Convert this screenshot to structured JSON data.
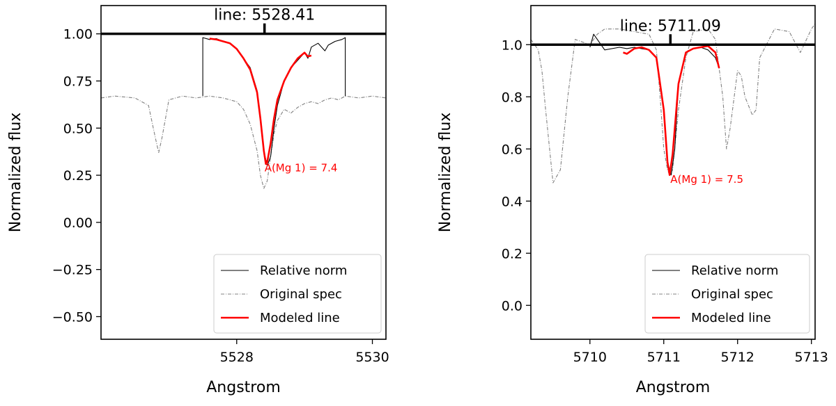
{
  "chart_data": [
    {
      "type": "line",
      "title": "line: 5528.41",
      "xlabel": "Angstrom",
      "ylabel": "Normalized flux",
      "xlim": [
        5526.0,
        5530.2
      ],
      "ylim": [
        -0.62,
        1.15
      ],
      "xticks": [
        5528,
        5530
      ],
      "yticks": [
        -0.5,
        -0.25,
        0.0,
        0.25,
        0.5,
        0.75,
        1.0
      ],
      "ytick_labels": [
        "−0.50",
        "−0.25",
        "0.00",
        "0.25",
        "0.50",
        "0.75",
        "1.00"
      ],
      "reference_line": {
        "y": 1.0,
        "marker_x": 5528.41
      },
      "annotation": {
        "text": "A(Mg 1) = 7.4",
        "x": 5528.41,
        "y": 0.27
      },
      "legend": {
        "position": "bottom-right",
        "entries": [
          "Relative norm",
          "Original spec",
          "Modeled line"
        ]
      },
      "series": [
        {
          "name": "Relative norm",
          "color": "#000000",
          "style": "solid",
          "x": [
            5527.5,
            5527.5,
            5527.6,
            5527.7,
            5527.8,
            5527.9,
            5528.0,
            5528.1,
            5528.2,
            5528.3,
            5528.35,
            5528.4,
            5528.45,
            5528.5,
            5528.55,
            5528.6,
            5528.7,
            5528.8,
            5528.9,
            5529.0,
            5529.05,
            5529.1,
            5529.2,
            5529.3,
            5529.35,
            5529.45,
            5529.55,
            5529.6,
            5529.6
          ],
          "y": [
            0.67,
            0.98,
            0.97,
            0.975,
            0.96,
            0.95,
            0.92,
            0.87,
            0.82,
            0.7,
            0.55,
            0.38,
            0.3,
            0.35,
            0.5,
            0.62,
            0.75,
            0.82,
            0.86,
            0.9,
            0.87,
            0.93,
            0.95,
            0.91,
            0.94,
            0.96,
            0.97,
            0.98,
            0.67
          ]
        },
        {
          "name": "Original spec",
          "color": "#808080",
          "style": "dashdot",
          "x": [
            5526.0,
            5526.2,
            5526.5,
            5526.7,
            5526.8,
            5526.85,
            5526.9,
            5527.0,
            5527.2,
            5527.4,
            5527.6,
            5527.8,
            5528.0,
            5528.1,
            5528.2,
            5528.3,
            5528.35,
            5528.4,
            5528.45,
            5528.5,
            5528.55,
            5528.6,
            5528.7,
            5528.8,
            5528.9,
            5529.0,
            5529.1,
            5529.2,
            5529.3,
            5529.4,
            5529.5,
            5529.6,
            5529.8,
            5530.0,
            5530.2
          ],
          "y": [
            0.66,
            0.67,
            0.66,
            0.62,
            0.45,
            0.37,
            0.45,
            0.65,
            0.67,
            0.66,
            0.67,
            0.66,
            0.64,
            0.6,
            0.52,
            0.38,
            0.25,
            0.18,
            0.22,
            0.35,
            0.47,
            0.54,
            0.6,
            0.58,
            0.61,
            0.63,
            0.64,
            0.63,
            0.65,
            0.66,
            0.65,
            0.67,
            0.66,
            0.67,
            0.66
          ]
        },
        {
          "name": "Modeled line",
          "color": "#ff0000",
          "style": "solid",
          "x": [
            5527.6,
            5527.7,
            5527.8,
            5527.9,
            5528.0,
            5528.1,
            5528.2,
            5528.3,
            5528.35,
            5528.4,
            5528.43,
            5528.45,
            5528.5,
            5528.55,
            5528.6,
            5528.7,
            5528.8,
            5528.9,
            5529.0,
            5529.05,
            5529.1
          ],
          "y": [
            0.975,
            0.97,
            0.96,
            0.95,
            0.92,
            0.87,
            0.81,
            0.69,
            0.55,
            0.38,
            0.31,
            0.32,
            0.42,
            0.55,
            0.65,
            0.75,
            0.82,
            0.87,
            0.9,
            0.88,
            0.885
          ]
        }
      ]
    },
    {
      "type": "line",
      "title": "line: 5711.09",
      "xlabel": "Angstrom",
      "ylabel": "Normalized flux",
      "xlim": [
        5709.2,
        5713.05
      ],
      "ylim": [
        -0.13,
        1.15
      ],
      "xticks": [
        5710,
        5711,
        5712,
        5713
      ],
      "yticks": [
        0.0,
        0.2,
        0.4,
        0.6,
        0.8,
        1.0
      ],
      "ytick_labels": [
        "0.0",
        "0.2",
        "0.4",
        "0.6",
        "0.8",
        "1.0"
      ],
      "reference_line": {
        "y": 1.0,
        "marker_x": 5711.09
      },
      "annotation": {
        "text": "A(Mg 1) = 7.5",
        "x": 5711.09,
        "y": 0.47
      },
      "legend": {
        "position": "bottom-right",
        "entries": [
          "Relative norm",
          "Original spec",
          "Modeled line"
        ]
      },
      "series": [
        {
          "name": "Relative norm",
          "color": "#000000",
          "style": "solid",
          "x": [
            5710.0,
            5710.05,
            5710.2,
            5710.4,
            5710.5,
            5710.6,
            5710.7,
            5710.8,
            5710.9,
            5711.0,
            5711.05,
            5711.1,
            5711.15,
            5711.2,
            5711.3,
            5711.4,
            5711.5,
            5711.6,
            5711.7,
            5711.75
          ],
          "y": [
            0.99,
            1.04,
            0.98,
            0.99,
            0.985,
            0.99,
            0.985,
            0.98,
            0.95,
            0.75,
            0.55,
            0.5,
            0.6,
            0.85,
            0.97,
            0.985,
            0.99,
            0.98,
            0.95,
            0.91
          ]
        },
        {
          "name": "Original spec",
          "color": "#808080",
          "style": "dashdot",
          "x": [
            5709.2,
            5709.3,
            5709.35,
            5709.4,
            5709.5,
            5709.6,
            5709.7,
            5709.8,
            5709.9,
            5710.0,
            5710.1,
            5710.2,
            5710.4,
            5710.6,
            5710.8,
            5710.9,
            5710.95,
            5711.0,
            5711.05,
            5711.08,
            5711.12,
            5711.2,
            5711.3,
            5711.4,
            5711.6,
            5711.7,
            5711.8,
            5711.85,
            5711.9,
            5712.0,
            5712.05,
            5712.1,
            5712.2,
            5712.25,
            5712.3,
            5712.5,
            5712.7,
            5712.85,
            5712.9,
            5713.0,
            5713.05
          ],
          "y": [
            1.02,
            0.98,
            0.9,
            0.75,
            0.47,
            0.52,
            0.8,
            1.02,
            1.01,
            1.0,
            1.04,
            1.06,
            1.06,
            1.05,
            1.04,
            0.98,
            0.8,
            0.6,
            0.52,
            0.5,
            0.52,
            0.75,
            0.95,
            1.05,
            1.06,
            1.02,
            0.8,
            0.6,
            0.68,
            0.9,
            0.88,
            0.8,
            0.73,
            0.75,
            0.95,
            1.06,
            1.05,
            0.97,
            1.0,
            1.06,
            1.08
          ]
        },
        {
          "name": "Modeled line",
          "color": "#ff0000",
          "style": "solid",
          "x": [
            5710.45,
            5710.5,
            5710.6,
            5710.7,
            5710.8,
            5710.9,
            5711.0,
            5711.05,
            5711.08,
            5711.12,
            5711.2,
            5711.3,
            5711.4,
            5711.5,
            5711.6,
            5711.7,
            5711.75
          ],
          "y": [
            0.97,
            0.965,
            0.985,
            0.99,
            0.98,
            0.95,
            0.75,
            0.55,
            0.5,
            0.58,
            0.85,
            0.97,
            0.985,
            0.99,
            0.995,
            0.97,
            0.91
          ]
        }
      ]
    }
  ]
}
